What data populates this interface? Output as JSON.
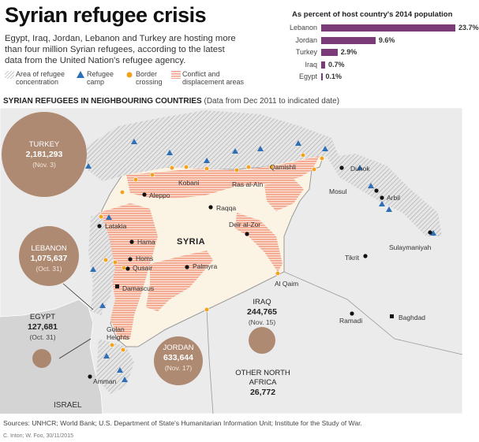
{
  "header": {
    "title": "Syrian refugee crisis",
    "subtitle": "Egypt, Iraq, Jordan, Lebanon and Turkey are hosting more than four million Syrian refugees, according to the latest data from the United Nation's refugee agency."
  },
  "legend": {
    "refugee_area": "Area of refugee concentration",
    "refugee_camp": "Refugee camp",
    "border_crossing": "Border crossing",
    "conflict_area": "Conflict and displacement areas"
  },
  "bar_chart": {
    "title": "As percent of host country's 2014 population",
    "rows": [
      {
        "country": "Lebanon",
        "value": 23.7,
        "label": "23.7%"
      },
      {
        "country": "Jordan",
        "value": 9.6,
        "label": "9.6%"
      },
      {
        "country": "Turkey",
        "value": 2.9,
        "label": "2.9%"
      },
      {
        "country": "Iraq",
        "value": 0.7,
        "label": "0.7%"
      },
      {
        "country": "Egypt",
        "value": 0.1,
        "label": "0.1%"
      }
    ]
  },
  "map": {
    "heading": "SYRIAN REFUGEES IN NEIGHBOURING COUNTRIES",
    "heading_note": "(Data from Dec 2011 to indicated date)",
    "country_label": "SYRIA",
    "israel_label": "ISRAEL",
    "colors": {
      "bubble": "#a57c62",
      "conflict": "#f2a389",
      "syria_fill": "#fbf3e4",
      "land": "#e8e8e8",
      "camp": "#2e6fb5",
      "crossing": "#f2a21d"
    },
    "bubbles": [
      {
        "name": "TURKEY",
        "value": "2,181,293",
        "date": "(Nov. 3)"
      },
      {
        "name": "LEBANON",
        "value": "1,075,637",
        "date": "(Oct. 31)"
      },
      {
        "name": "EGYPT",
        "value": "127,681",
        "date": "(Oct. 31)"
      },
      {
        "name": "JORDAN",
        "value": "633,644",
        "date": "(Nov. 17)"
      },
      {
        "name": "IRAQ",
        "value": "244,765",
        "date": "(Nov. 15)"
      },
      {
        "name": "OTHER NORTH AFRICA",
        "value": "26,772",
        "date": ""
      }
    ],
    "cities": [
      "Aleppo",
      "Kobani",
      "Qamishli",
      "Ras al-Ain",
      "Raqqa",
      "Latakia",
      "Hama",
      "Homs",
      "Qusair",
      "Palmyra",
      "Deir al-Zor",
      "Al Qaim",
      "Damascus",
      "Golan Heights",
      "Amman",
      "Duhok",
      "Mosul",
      "Arbil",
      "Sulaymaniyah",
      "Tikrit",
      "Ramadi",
      "Baghdad"
    ]
  },
  "sources": "Sources: UNHCR; World Bank; U.S. Department of State's Humanitarian Information Unit; Institute for the Study of War.",
  "credit": "C. Inton; W. Foo, 30/11/2015"
}
